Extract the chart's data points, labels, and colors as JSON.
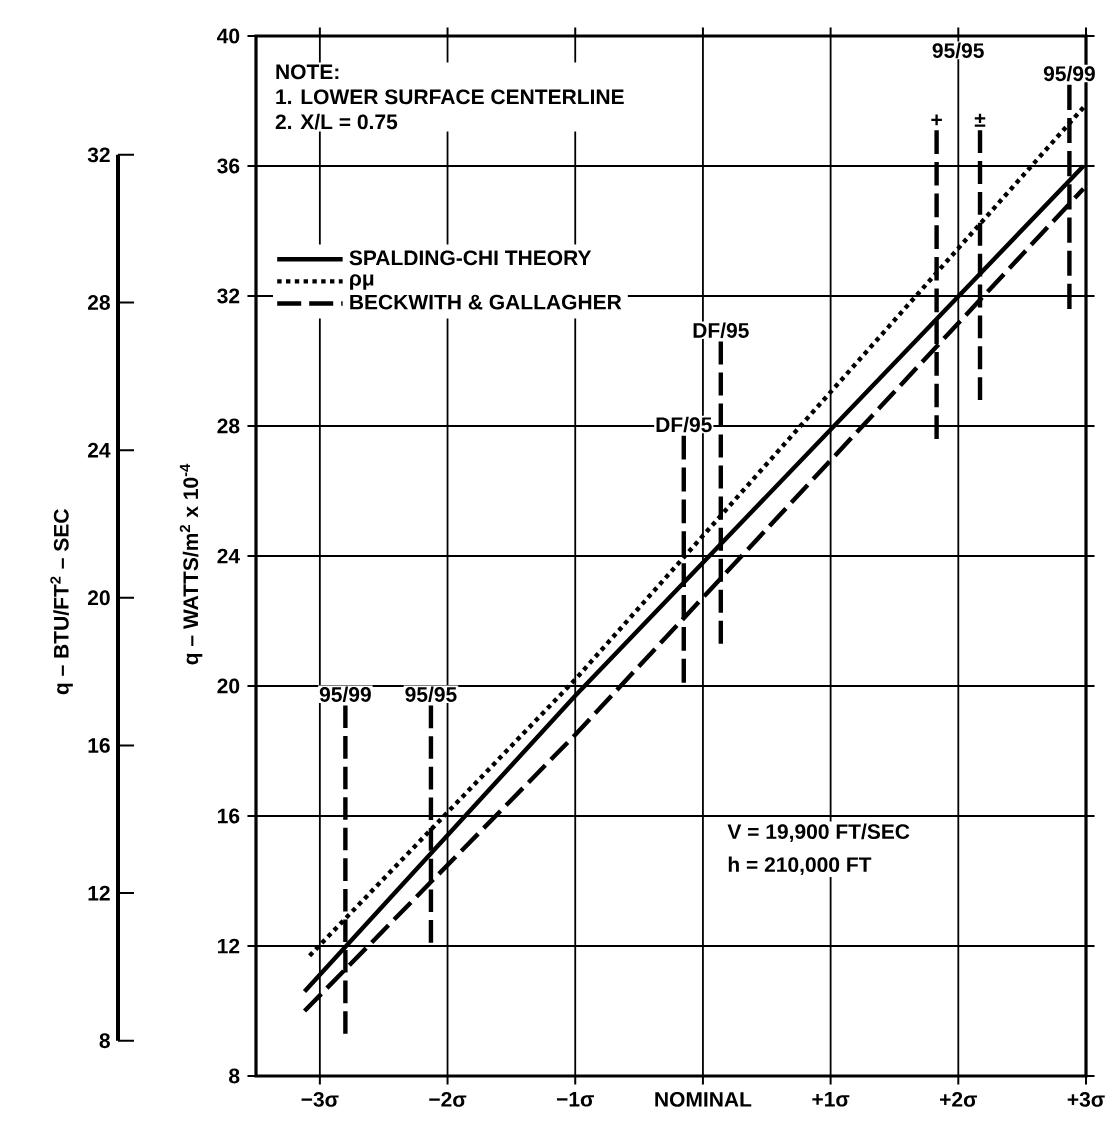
{
  "chart_data": {
    "type": "line",
    "xlim": [
      -3.5,
      3.0
    ],
    "xticks": [
      {
        "value": -3,
        "label": "−3σ"
      },
      {
        "value": -2,
        "label": "−2σ"
      },
      {
        "value": -1,
        "label": "−1σ"
      },
      {
        "value": 0,
        "label": "NOMINAL"
      },
      {
        "value": 1,
        "label": "+1σ"
      },
      {
        "value": 2,
        "label": "+2σ"
      },
      {
        "value": 3,
        "label": "+3σ"
      }
    ],
    "ylim": [
      8,
      40
    ],
    "yticks": [
      8,
      12,
      16,
      20,
      24,
      28,
      32,
      36,
      40
    ],
    "ylabel": "q – WATTS/m$^{2}$ x 10$^{-4}$",
    "y2lim": [
      8,
      32
    ],
    "y2ticks": [
      8,
      12,
      16,
      20,
      24,
      28,
      32
    ],
    "y2label": "q – BTU/FT$^{2}$ – SEC",
    "grid": true,
    "legend": "top left",
    "series": [
      {
        "name": "SPALDING-CHI THEORY",
        "color": "#000000",
        "line_style": "solid",
        "x": [
          -3.12,
          -1,
          2.98
        ],
        "values": [
          10.6,
          19.7,
          36.0
        ]
      },
      {
        "name": "ρμ",
        "color": "#000000",
        "line_style": "dotted",
        "x": [
          -3.08,
          -1,
          2.98
        ],
        "values": [
          11.7,
          20.2,
          37.8
        ]
      },
      {
        "name": "BECKWITH & GALLAGHER",
        "color": "#000000",
        "line_style": "dashed",
        "x": [
          -3.12,
          -1,
          2.98
        ],
        "values": [
          10.0,
          18.5,
          35.3
        ]
      },
      {
        "color": "#000000",
        "line_style": "dashed",
        "x": [
          -2.8,
          -2.8
        ],
        "values": [
          9.3,
          19.4
        ]
      },
      {
        "color": "#000000",
        "line_style": "dashed",
        "x": [
          -2.13,
          -2.13
        ],
        "values": [
          12.1,
          19.4
        ]
      },
      {
        "color": "#000000",
        "line_style": "dashed",
        "x": [
          -0.15,
          -0.15
        ],
        "values": [
          20.1,
          27.7
        ]
      },
      {
        "color": "#000000",
        "line_style": "dashed",
        "x": [
          0.14,
          0.14
        ],
        "values": [
          21.3,
          30.6
        ]
      },
      {
        "color": "#000000",
        "line_style": "dashed",
        "x": [
          1.83,
          1.83
        ],
        "values": [
          27.6,
          37.1
        ]
      },
      {
        "color": "#000000",
        "line_style": "dashed",
        "x": [
          2.17,
          2.17
        ],
        "values": [
          28.8,
          37.1
        ]
      },
      {
        "color": "#000000",
        "line_style": "dashed",
        "x": [
          2.87,
          2.87
        ],
        "values": [
          31.6,
          38.5
        ]
      }
    ],
    "annotations": [
      "NOTE:",
      "1. LOWER SURFACE CENTERLINE",
      "2. X/L = 0.75",
      "V = 19,900 FT/SEC",
      "h = 210,000 FT",
      "95/95",
      {
        "text": "95/99",
        "x": -2.8,
        "y": 19.4
      },
      {
        "text": "95/95",
        "x": -2.13,
        "y": 19.4
      },
      {
        "text": "DF/95",
        "x": -0.15,
        "y": 27.7
      },
      {
        "text": "DF/95",
        "x": 0.14,
        "y": 30.6
      },
      {
        "text": "95/99",
        "x": 2.87,
        "y": 38.5
      },
      {
        "text": "+",
        "x": 1.83,
        "y": 37.1
      },
      {
        "text": "±",
        "x": 2.17,
        "y": 37.1
      }
    ]
  }
}
